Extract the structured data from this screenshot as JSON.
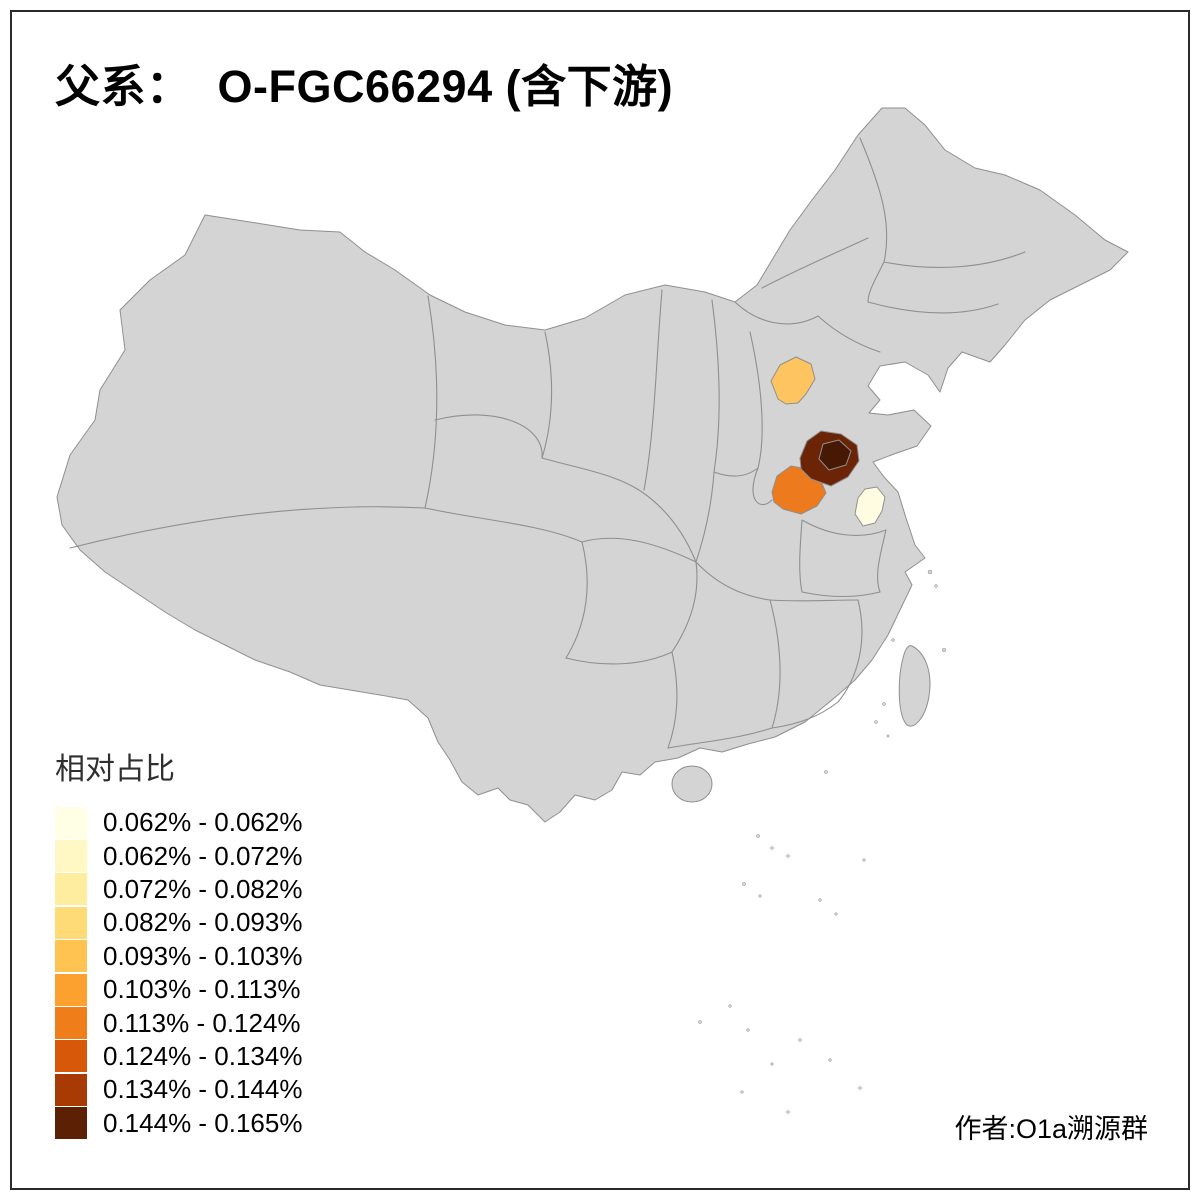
{
  "frame": {
    "border_color": "#2a2a2a",
    "background": "#ffffff"
  },
  "title": {
    "text": "父系：  O-FGC66294 (含下游)"
  },
  "legend": {
    "title": "相对占比",
    "items": [
      {
        "label": "0.062% - 0.062%",
        "color": "#FFFFE5"
      },
      {
        "label": "0.062% - 0.072%",
        "color": "#FFF8C4"
      },
      {
        "label": "0.072% - 0.082%",
        "color": "#FEEC9F"
      },
      {
        "label": "0.082% - 0.093%",
        "color": "#FEDB77"
      },
      {
        "label": "0.093% - 0.103%",
        "color": "#FEC350"
      },
      {
        "label": "0.103% - 0.113%",
        "color": "#FCA130"
      },
      {
        "label": "0.113% - 0.124%",
        "color": "#EF7E1A"
      },
      {
        "label": "0.124% - 0.134%",
        "color": "#D65808"
      },
      {
        "label": "0.134% - 0.144%",
        "color": "#A83B04"
      },
      {
        "label": "0.144% - 0.165%",
        "color": "#5C2104"
      }
    ]
  },
  "attribution": {
    "text": "作者:O1a溯源群"
  },
  "map": {
    "land_color": "#D4D4D4",
    "boundary_color": "#8F8F8F",
    "highlights": [
      {
        "id": "highlight-north-region",
        "color": "#FDC45F"
      },
      {
        "id": "highlight-orange-region",
        "color": "#ED7A1C"
      },
      {
        "id": "highlight-dark-region",
        "color": "#6B2506"
      },
      {
        "id": "highlight-dark-core-region",
        "color": "#471804"
      },
      {
        "id": "highlight-pale-region",
        "color": "#FFFCE1"
      }
    ]
  }
}
